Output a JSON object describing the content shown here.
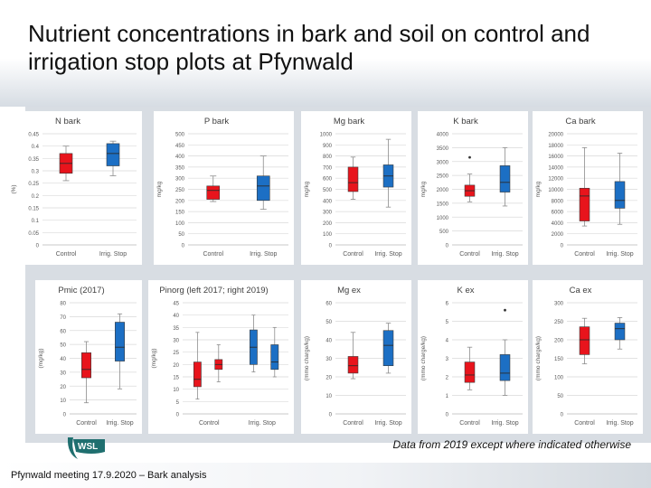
{
  "slide": {
    "title_line1": "Nutrient concentrations in bark and soil on control and",
    "title_line2": "irrigation stop plots at Pfynwald",
    "note": "Data from 2019 except where indicated otherwise",
    "footer": "Pfynwald meeting 17.9.2020 – Bark analysis",
    "logo_text": "WSL"
  },
  "colors": {
    "control": "#e8141c",
    "irrig": "#1c6fc4",
    "whisker": "#8c8c8c",
    "grid": "#d9d9d9",
    "chart_bg": "#ffffff",
    "area_bg": "#d8dde3",
    "logo": "#1f6f6f"
  },
  "chart_data": [
    {
      "type": "box",
      "title": "N bark",
      "ylabel": "(%)",
      "ylim": [
        0,
        0.45
      ],
      "yticks": [
        "0",
        "0.05",
        "0.1",
        "0.15",
        "0.2",
        "0.25",
        "0.3",
        "0.35",
        "0.4",
        "0.45"
      ],
      "categories": [
        "Control",
        "Irrig. Stop"
      ],
      "boxes": [
        {
          "min": 0.26,
          "q1": 0.29,
          "median": 0.33,
          "q3": 0.37,
          "max": 0.4,
          "outliers": []
        },
        {
          "min": 0.28,
          "q1": 0.32,
          "median": 0.37,
          "q3": 0.41,
          "max": 0.42,
          "outliers": []
        }
      ]
    },
    {
      "type": "box",
      "title": "P bark",
      "ylabel": "mg/kg",
      "ylim": [
        0,
        500
      ],
      "yticks": [
        "0",
        "50",
        "100",
        "150",
        "200",
        "250",
        "300",
        "350",
        "400",
        "450",
        "500"
      ],
      "categories": [
        "Control",
        "Irrig. Stop"
      ],
      "boxes": [
        {
          "min": 195,
          "q1": 205,
          "median": 245,
          "q3": 265,
          "max": 310,
          "outliers": []
        },
        {
          "min": 160,
          "q1": 200,
          "median": 265,
          "q3": 310,
          "max": 400,
          "outliers": []
        }
      ]
    },
    {
      "type": "box",
      "title": "Mg bark",
      "ylabel": "mg/kg",
      "ylim": [
        0,
        1000
      ],
      "yticks": [
        "0",
        "100",
        "200",
        "300",
        "400",
        "500",
        "600",
        "700",
        "800",
        "900",
        "1000"
      ],
      "categories": [
        "Control",
        "Irrig. Stop"
      ],
      "boxes": [
        {
          "min": 410,
          "q1": 480,
          "median": 560,
          "q3": 700,
          "max": 790,
          "outliers": []
        },
        {
          "min": 340,
          "q1": 520,
          "median": 620,
          "q3": 720,
          "max": 950,
          "outliers": []
        }
      ]
    },
    {
      "type": "box",
      "title": "K bark",
      "ylabel": "mg/kg",
      "ylim": [
        0,
        4000
      ],
      "yticks": [
        "0",
        "500",
        "1000",
        "1500",
        "2000",
        "2500",
        "3000",
        "3500",
        "4000"
      ],
      "categories": [
        "Control",
        "Irrig. Stop"
      ],
      "boxes": [
        {
          "min": 1550,
          "q1": 1750,
          "median": 1950,
          "q3": 2150,
          "max": 2550,
          "outliers": [
            3150
          ]
        },
        {
          "min": 1400,
          "q1": 1900,
          "median": 2250,
          "q3": 2850,
          "max": 3500,
          "outliers": []
        }
      ]
    },
    {
      "type": "box",
      "title": "Ca bark",
      "ylabel": "mg/kg",
      "ylim": [
        0,
        20000
      ],
      "yticks": [
        "0",
        "2000",
        "4000",
        "6000",
        "8000",
        "10000",
        "12000",
        "14000",
        "16000",
        "18000",
        "20000"
      ],
      "categories": [
        "Control",
        "Irrig. Stop"
      ],
      "boxes": [
        {
          "min": 3400,
          "q1": 4300,
          "median": 8800,
          "q3": 10200,
          "max": 17500,
          "outliers": []
        },
        {
          "min": 3700,
          "q1": 6600,
          "median": 8000,
          "q3": 11400,
          "max": 16500,
          "outliers": []
        }
      ]
    },
    {
      "type": "box",
      "title": "Pmic (2017)",
      "ylabel": "(mg/kg)",
      "ylim": [
        0,
        80
      ],
      "yticks": [
        "0",
        "10",
        "20",
        "30",
        "40",
        "50",
        "60",
        "70",
        "80"
      ],
      "categories": [
        "Control",
        "Irrig. Stop"
      ],
      "boxes": [
        {
          "min": 8,
          "q1": 26,
          "median": 32,
          "q3": 44,
          "max": 52,
          "outliers": []
        },
        {
          "min": 18,
          "q1": 38,
          "median": 48,
          "q3": 66,
          "max": 72,
          "outliers": []
        }
      ]
    },
    {
      "type": "box",
      "title": "Pinorg (left 2017; right 2019)",
      "ylabel": "(mg/kg)",
      "ylim": [
        0,
        45
      ],
      "yticks": [
        "0",
        "5",
        "10",
        "15",
        "20",
        "25",
        "30",
        "35",
        "40",
        "45"
      ],
      "categories": [
        "Control",
        "Irrig. Stop"
      ],
      "boxes": [
        {
          "min": 6,
          "q1": 11,
          "median": 14,
          "q3": 21,
          "max": 33,
          "outliers": []
        },
        {
          "min": 13,
          "q1": 18,
          "median": 20,
          "q3": 22,
          "max": 28,
          "outliers": []
        },
        {
          "min": 17,
          "q1": 20,
          "median": 27,
          "q3": 34,
          "max": 40,
          "outliers": []
        },
        {
          "min": 15,
          "q1": 18,
          "median": 21,
          "q3": 28,
          "max": 35,
          "outliers": []
        }
      ]
    },
    {
      "type": "box",
      "title": "Mg ex",
      "ylabel": "(mmo charge/kg)",
      "ylim": [
        0,
        60
      ],
      "yticks": [
        "0",
        "10",
        "20",
        "30",
        "40",
        "50",
        "60"
      ],
      "categories": [
        "Control",
        "Irrig. Stop"
      ],
      "boxes": [
        {
          "min": 19,
          "q1": 22,
          "median": 26,
          "q3": 31,
          "max": 44,
          "outliers": []
        },
        {
          "min": 22,
          "q1": 26,
          "median": 37,
          "q3": 45,
          "max": 49,
          "outliers": []
        }
      ]
    },
    {
      "type": "box",
      "title": "K ex",
      "ylabel": "(mmo charge/kg)",
      "ylim": [
        0,
        6
      ],
      "yticks": [
        "0",
        "1",
        "2",
        "3",
        "4",
        "5",
        "6"
      ],
      "categories": [
        "Control",
        "Irrig. Stop"
      ],
      "boxes": [
        {
          "min": 1.3,
          "q1": 1.7,
          "median": 2.1,
          "q3": 2.8,
          "max": 3.6,
          "outliers": []
        },
        {
          "min": 1.0,
          "q1": 1.8,
          "median": 2.2,
          "q3": 3.2,
          "max": 4.0,
          "outliers": [
            5.6
          ]
        }
      ]
    },
    {
      "type": "box",
      "title": "Ca ex",
      "ylabel": "(mmo charge/kg)",
      "ylim": [
        0,
        300
      ],
      "yticks": [
        "0",
        "50",
        "100",
        "150",
        "200",
        "250",
        "300"
      ],
      "categories": [
        "Control",
        "Irrig. Stop"
      ],
      "boxes": [
        {
          "min": 135,
          "q1": 160,
          "median": 200,
          "q3": 235,
          "max": 258,
          "outliers": []
        },
        {
          "min": 175,
          "q1": 200,
          "median": 230,
          "q3": 245,
          "max": 260,
          "outliers": []
        }
      ]
    }
  ]
}
